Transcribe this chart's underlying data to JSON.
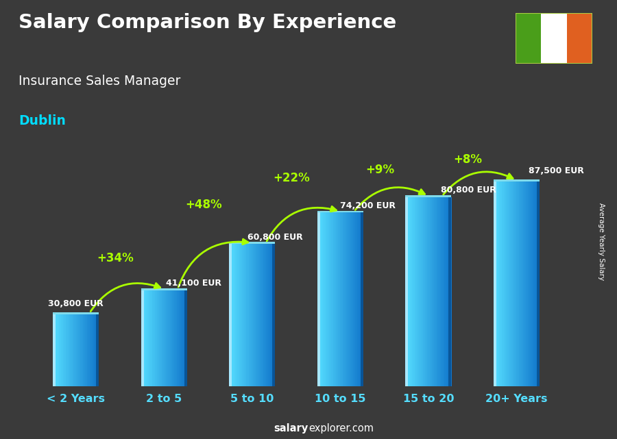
{
  "title": "Salary Comparison By Experience",
  "subtitle": "Insurance Sales Manager",
  "city": "Dublin",
  "categories": [
    "< 2 Years",
    "2 to 5",
    "5 to 10",
    "10 to 15",
    "15 to 20",
    "20+ Years"
  ],
  "values": [
    30800,
    41100,
    60800,
    74200,
    80800,
    87500
  ],
  "labels": [
    "30,800 EUR",
    "41,100 EUR",
    "60,800 EUR",
    "74,200 EUR",
    "80,800 EUR",
    "87,500 EUR"
  ],
  "pct_labels": [
    "+34%",
    "+48%",
    "+22%",
    "+9%",
    "+8%"
  ],
  "bar_color_left": "#55ddff",
  "bar_color_right": "#1177cc",
  "bar_highlight_left": "#aaeeff",
  "bar_top_color": "#77eeff",
  "bar_shadow_color": "#0055aa",
  "pct_color": "#aaff00",
  "label_color": "#ffffff",
  "title_color": "#ffffff",
  "subtitle_color": "#ffffff",
  "city_color": "#00ddff",
  "bg_color": "#3a3a3a",
  "watermark_salary": "salary",
  "watermark_rest": "explorer.com",
  "ylabel": "Average Yearly Salary",
  "ylim_max": 105000,
  "figsize": [
    9.0,
    6.41
  ],
  "dpi": 100,
  "flag_green": "#4a9e1a",
  "flag_white": "#ffffff",
  "flag_orange": "#e06020"
}
